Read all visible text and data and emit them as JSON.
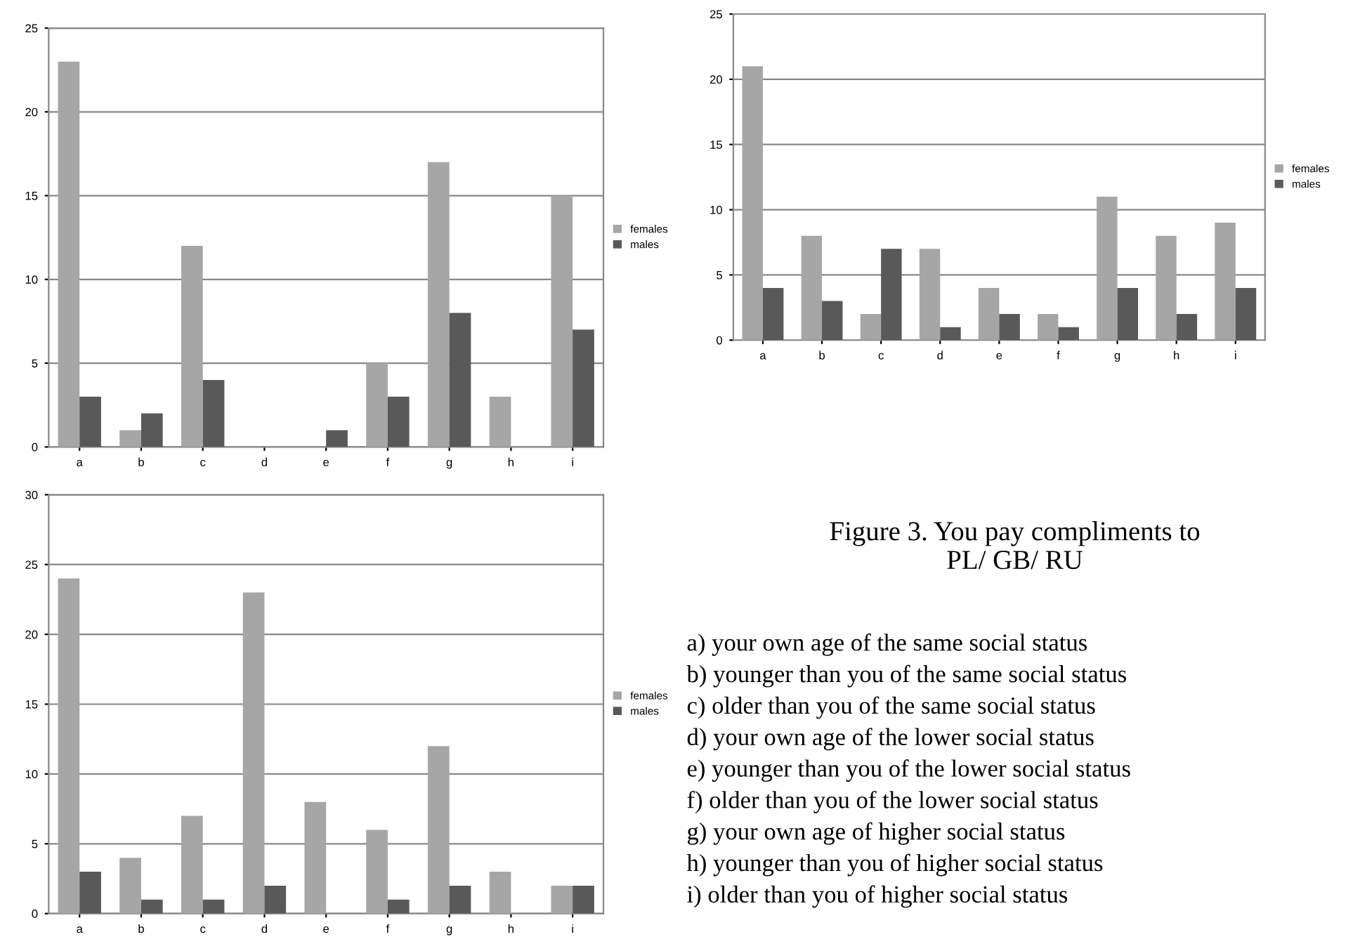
{
  "chart_data": [
    {
      "type": "bar",
      "categories": [
        "a",
        "b",
        "c",
        "d",
        "e",
        "f",
        "g",
        "h",
        "i"
      ],
      "series": [
        {
          "name": "females",
          "color": "#a6a6a6",
          "values": [
            23,
            1,
            12,
            0,
            0,
            5,
            17,
            3,
            15
          ]
        },
        {
          "name": "males",
          "color": "#595959",
          "values": [
            3,
            2,
            4,
            0,
            1,
            3,
            8,
            0,
            7
          ]
        }
      ],
      "ylim": [
        0,
        25
      ],
      "yticks": [
        0,
        5,
        10,
        15,
        20,
        25
      ],
      "grid": "y",
      "legend": "right"
    },
    {
      "type": "bar",
      "categories": [
        "a",
        "b",
        "c",
        "d",
        "e",
        "f",
        "g",
        "h",
        "i"
      ],
      "series": [
        {
          "name": "females",
          "color": "#a6a6a6",
          "values": [
            21,
            8,
            2,
            7,
            4,
            2,
            11,
            8,
            9
          ]
        },
        {
          "name": "males",
          "color": "#595959",
          "values": [
            4,
            3,
            7,
            1,
            2,
            1,
            4,
            2,
            4
          ]
        }
      ],
      "ylim": [
        0,
        25
      ],
      "yticks": [
        0,
        5,
        10,
        15,
        20,
        25
      ],
      "grid": "y",
      "legend": "right"
    },
    {
      "type": "bar",
      "categories": [
        "a",
        "b",
        "c",
        "d",
        "e",
        "f",
        "g",
        "h",
        "i"
      ],
      "series": [
        {
          "name": "females",
          "color": "#a6a6a6",
          "values": [
            24,
            4,
            7,
            23,
            8,
            6,
            12,
            3,
            2
          ]
        },
        {
          "name": "males",
          "color": "#595959",
          "values": [
            3,
            1,
            1,
            2,
            0,
            1,
            2,
            0,
            2
          ]
        }
      ],
      "ylim": [
        0,
        30
      ],
      "yticks": [
        0,
        5,
        10,
        15,
        20,
        25,
        30
      ],
      "grid": "y",
      "legend": "right"
    },
    {
      "type": "other",
      "title": "Figure 3. You pay compliments to\nPL/ GB/ RU",
      "annotations": [
        "a) your own age of the same social status",
        "b) younger than you of the same social status",
        "c) older than you of the same social status",
        "d) your own age of the lower social status",
        "e) younger than you of the lower social status",
        "f) older than you of the lower social status",
        "g) your own age of higher social status",
        "h) younger than you of higher social status",
        "i) older than you of higher social status"
      ]
    }
  ]
}
